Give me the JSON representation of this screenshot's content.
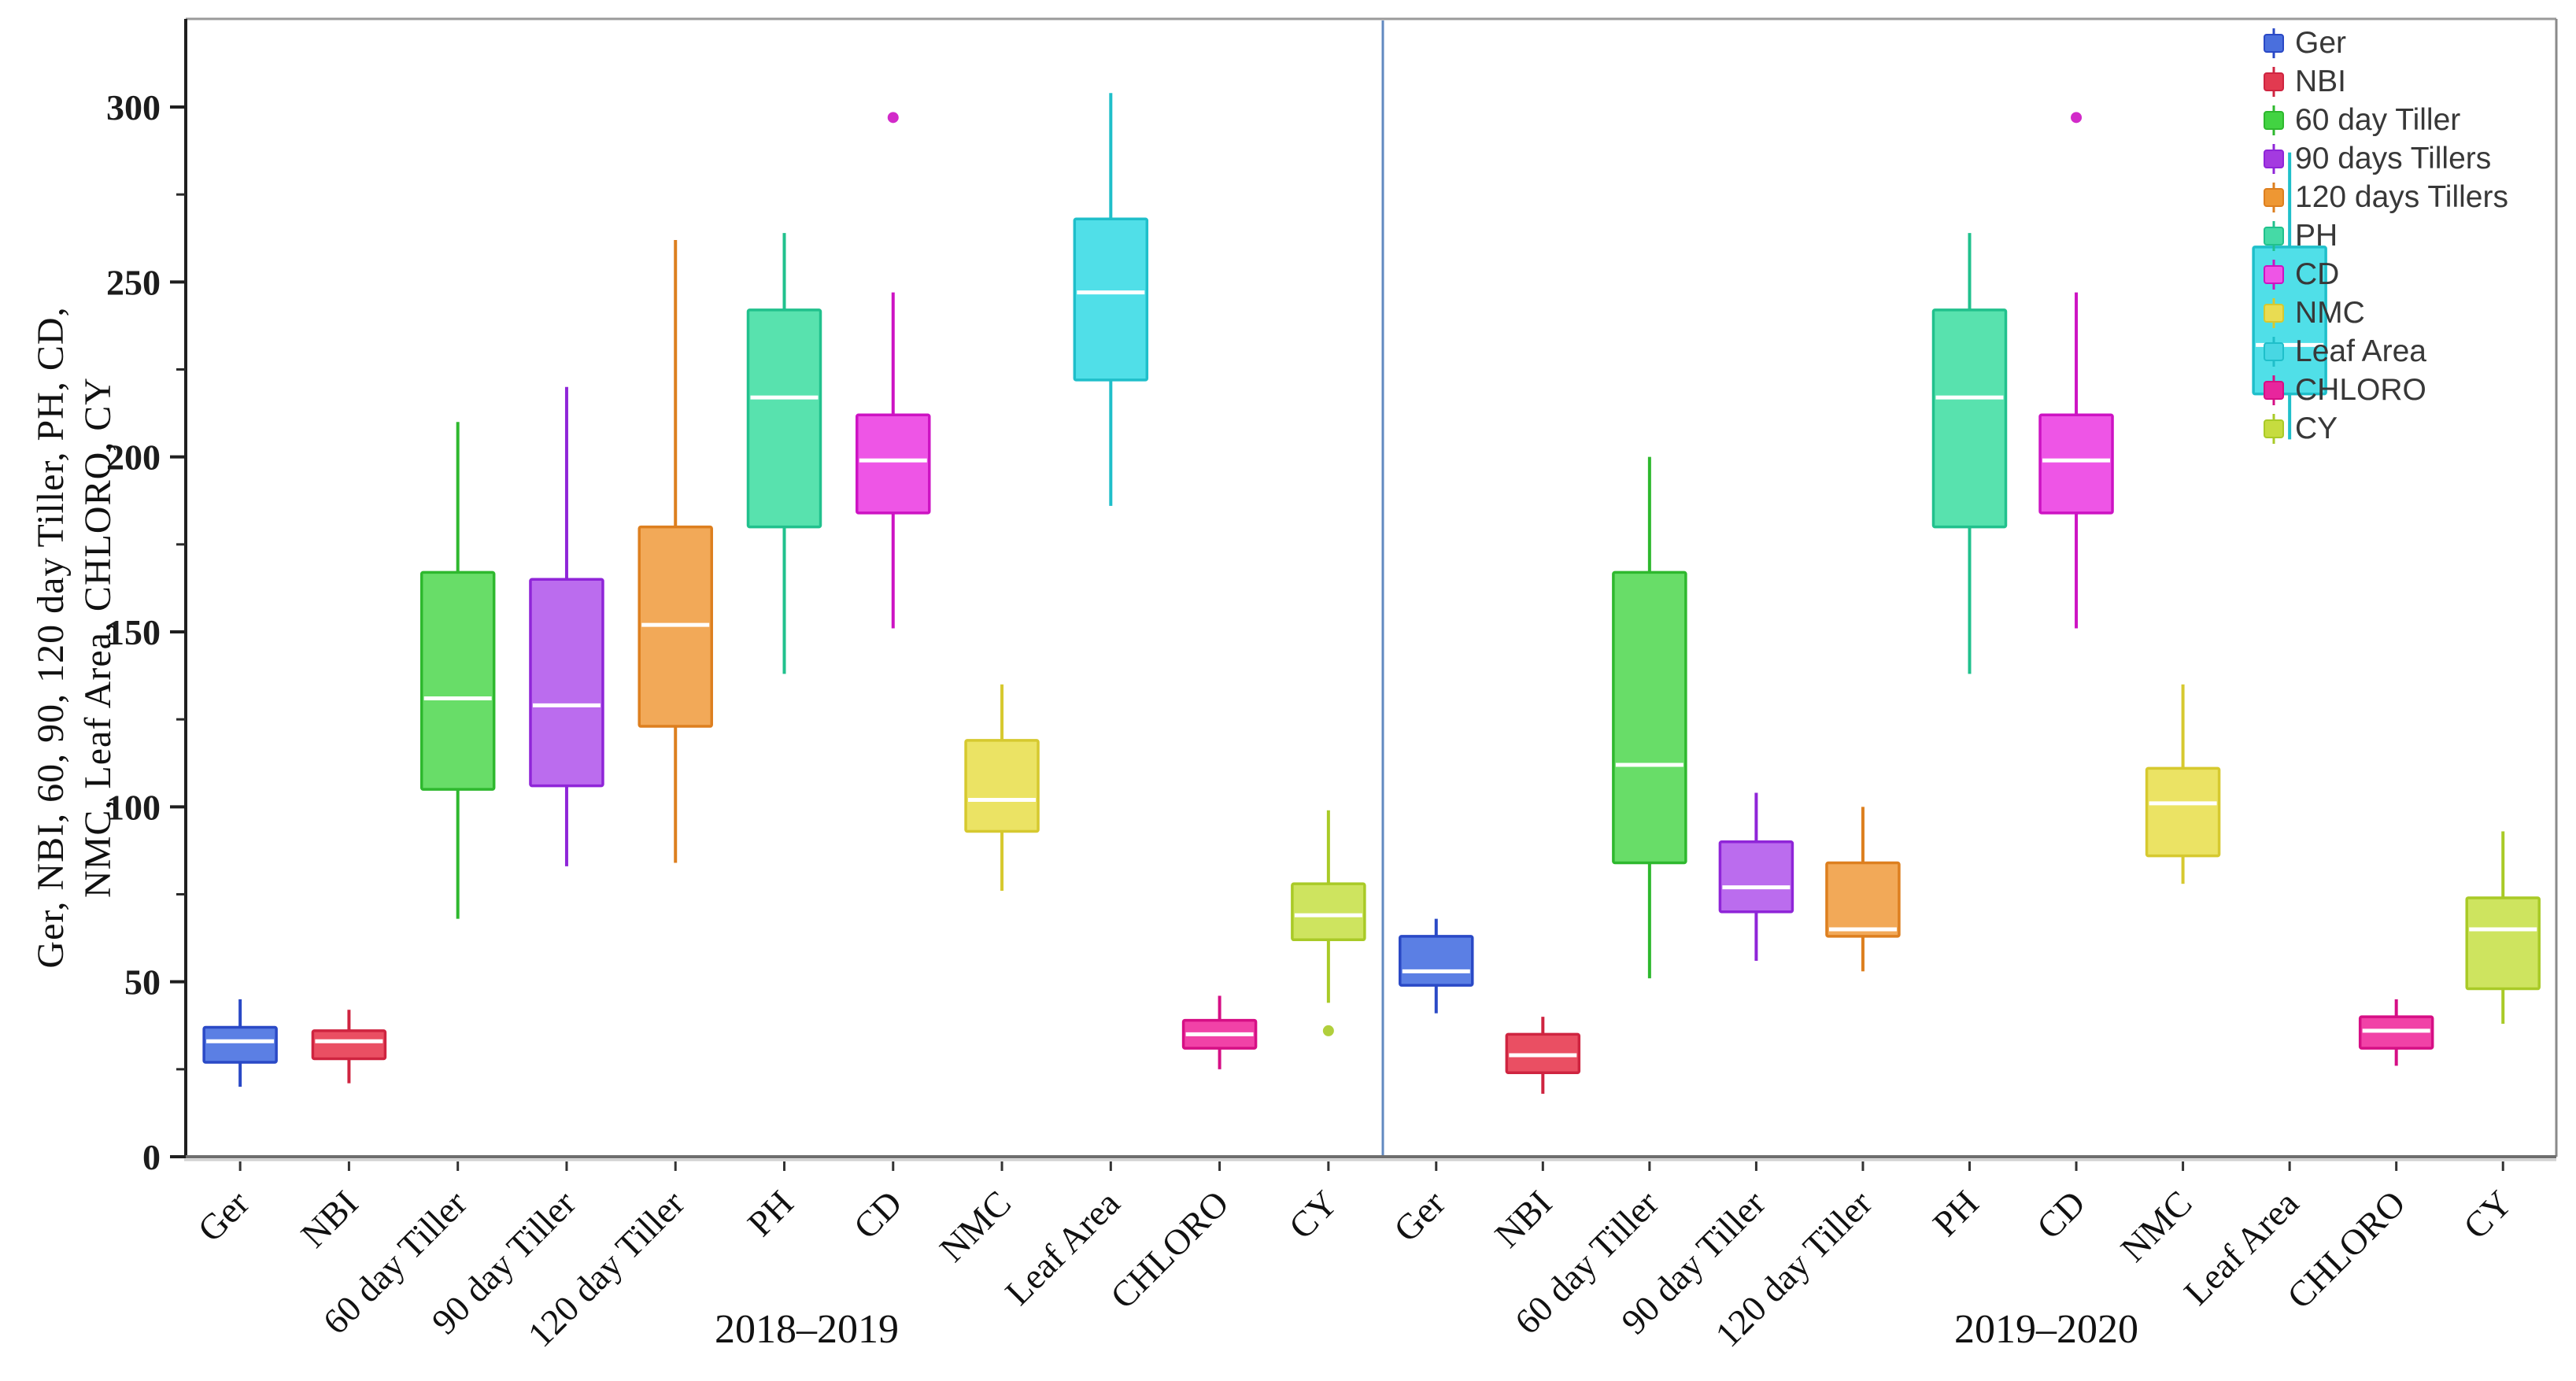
{
  "figure": {
    "type_note": "two-panel box plot of agronomic traits over two seasons"
  },
  "chart_data": {
    "type": "box",
    "title": "",
    "xlabel": "",
    "ylabel": "Ger, NBI, 60, 90, 120 day Tiller, PH, CD, NMC, Leaf Area, CHLORO, CY",
    "ylabel_lines": [
      "Ger, NBI, 60, 90, 120 day Tiller, PH, CD,",
      "NMC, Leaf Area, CHLORO, CY"
    ],
    "ylim": [
      0,
      330
    ],
    "yticks": [
      0,
      50,
      100,
      150,
      200,
      250,
      300
    ],
    "ytick_labels": [
      "0",
      "50",
      "100",
      "150",
      "200",
      "250",
      "300"
    ],
    "minor_ytick_step": 25,
    "grid": "off",
    "legend_position": "top-right",
    "panel_divider_color": "#6189c0",
    "legend_items": [
      {
        "key": "Ger",
        "label": "Ger"
      },
      {
        "key": "NBI",
        "label": "NBI"
      },
      {
        "key": "T60",
        "label": "60 day Tiller"
      },
      {
        "key": "T90",
        "label": "90 days Tillers"
      },
      {
        "key": "T120",
        "label": "120 days Tillers"
      },
      {
        "key": "PH",
        "label": "PH"
      },
      {
        "key": "CD",
        "label": "CD"
      },
      {
        "key": "NMC",
        "label": "NMC"
      },
      {
        "key": "LA",
        "label": "Leaf Area"
      },
      {
        "key": "CHL",
        "label": "CHLORO"
      },
      {
        "key": "CY",
        "label": "CY"
      }
    ],
    "colors": {
      "Ger": {
        "fill": "#5b7fe4",
        "stroke": "#2a49c6",
        "marker": "#4a6fdd"
      },
      "NBI": {
        "fill": "#ea4f63",
        "stroke": "#cf2440",
        "marker": "#e23a50"
      },
      "T60": {
        "fill": "#68dd68",
        "stroke": "#2eb82e",
        "marker": "#42d342"
      },
      "T90": {
        "fill": "#bb6cee",
        "stroke": "#8f25d8",
        "marker": "#a43ae0"
      },
      "T120": {
        "fill": "#f2a958",
        "stroke": "#dd7f1f",
        "marker": "#ee9733"
      },
      "PH": {
        "fill": "#58e2ae",
        "stroke": "#21c18d",
        "marker": "#45daa6"
      },
      "CD": {
        "fill": "#ee55e6",
        "stroke": "#cd13c3",
        "marker": "#ee55e6"
      },
      "NMC": {
        "fill": "#ebe364",
        "stroke": "#d6c92f",
        "marker": "#e9dc52"
      },
      "LA": {
        "fill": "#50dfe8",
        "stroke": "#1fbfca",
        "marker": "#48d7e3"
      },
      "CHL": {
        "fill": "#f142a7",
        "stroke": "#d60f85",
        "marker": "#e8259d"
      },
      "CY": {
        "fill": "#cee45f",
        "stroke": "#a9ca27",
        "marker": "#c6dc3f"
      }
    },
    "panels": [
      {
        "caption": "2018–2019",
        "boxes": [
          {
            "label": "Ger",
            "key": "Ger",
            "min": 20,
            "q1": 27,
            "median": 33,
            "q3": 37,
            "max": 45,
            "outliers": []
          },
          {
            "label": "NBI",
            "key": "NBI",
            "min": 21,
            "q1": 28,
            "median": 33,
            "q3": 36,
            "max": 42,
            "outliers": []
          },
          {
            "label": "60 day Tiller",
            "key": "T60",
            "min": 68,
            "q1": 105,
            "median": 131,
            "q3": 167,
            "max": 210,
            "outliers": []
          },
          {
            "label": "90 day Tiller",
            "key": "T90",
            "min": 83,
            "q1": 106,
            "median": 129,
            "q3": 165,
            "max": 220,
            "outliers": []
          },
          {
            "label": "120 day Tiller",
            "key": "T120",
            "min": 84,
            "q1": 123,
            "median": 152,
            "q3": 180,
            "max": 262,
            "outliers": []
          },
          {
            "label": "PH",
            "key": "PH",
            "min": 138,
            "q1": 180,
            "median": 217,
            "q3": 242,
            "max": 264,
            "outliers": []
          },
          {
            "label": "CD",
            "key": "CD",
            "min": 151,
            "q1": 184,
            "median": 199,
            "q3": 212,
            "max": 247,
            "outliers": [
              297
            ]
          },
          {
            "label": "NMC",
            "key": "NMC",
            "min": 76,
            "q1": 93,
            "median": 102,
            "q3": 119,
            "max": 135,
            "outliers": []
          },
          {
            "label": "Leaf Area",
            "key": "LA",
            "min": 186,
            "q1": 222,
            "median": 247,
            "q3": 268,
            "max": 304,
            "outliers": []
          },
          {
            "label": "CHLORO",
            "key": "CHL",
            "min": 25,
            "q1": 31,
            "median": 35,
            "q3": 39,
            "max": 46,
            "outliers": []
          },
          {
            "label": "CY",
            "key": "CY",
            "min": 44,
            "q1": 62,
            "median": 69,
            "q3": 78,
            "max": 99,
            "outliers": [
              36
            ]
          }
        ]
      },
      {
        "caption": "2019–2020",
        "boxes": [
          {
            "label": "Ger",
            "key": "Ger",
            "min": 41,
            "q1": 49,
            "median": 53,
            "q3": 63,
            "max": 68,
            "outliers": []
          },
          {
            "label": "NBI",
            "key": "NBI",
            "min": 18,
            "q1": 24,
            "median": 29,
            "q3": 35,
            "max": 40,
            "outliers": []
          },
          {
            "label": "60 day Tiller",
            "key": "T60",
            "min": 51,
            "q1": 84,
            "median": 112,
            "q3": 167,
            "max": 200,
            "outliers": []
          },
          {
            "label": "90 day Tiller",
            "key": "T90",
            "min": 56,
            "q1": 70,
            "median": 77,
            "q3": 90,
            "max": 104,
            "outliers": []
          },
          {
            "label": "120 day Tiller",
            "key": "T120",
            "min": 53,
            "q1": 63,
            "median": 65,
            "q3": 84,
            "max": 100,
            "outliers": []
          },
          {
            "label": "PH",
            "key": "PH",
            "min": 138,
            "q1": 180,
            "median": 217,
            "q3": 242,
            "max": 264,
            "outliers": []
          },
          {
            "label": "CD",
            "key": "CD",
            "min": 151,
            "q1": 184,
            "median": 199,
            "q3": 212,
            "max": 247,
            "outliers": [
              297
            ]
          },
          {
            "label": "NMC",
            "key": "NMC",
            "min": 78,
            "q1": 86,
            "median": 101,
            "q3": 111,
            "max": 135,
            "outliers": []
          },
          {
            "label": "Leaf Area",
            "key": "LA",
            "min": 205,
            "q1": 218,
            "median": 232,
            "q3": 260,
            "max": 287,
            "outliers": []
          },
          {
            "label": "CHLORO",
            "key": "CHL",
            "min": 26,
            "q1": 31,
            "median": 36,
            "q3": 40,
            "max": 45,
            "outliers": []
          },
          {
            "label": "CY",
            "key": "CY",
            "min": 38,
            "q1": 48,
            "median": 65,
            "q3": 74,
            "max": 93,
            "outliers": []
          }
        ]
      }
    ]
  }
}
